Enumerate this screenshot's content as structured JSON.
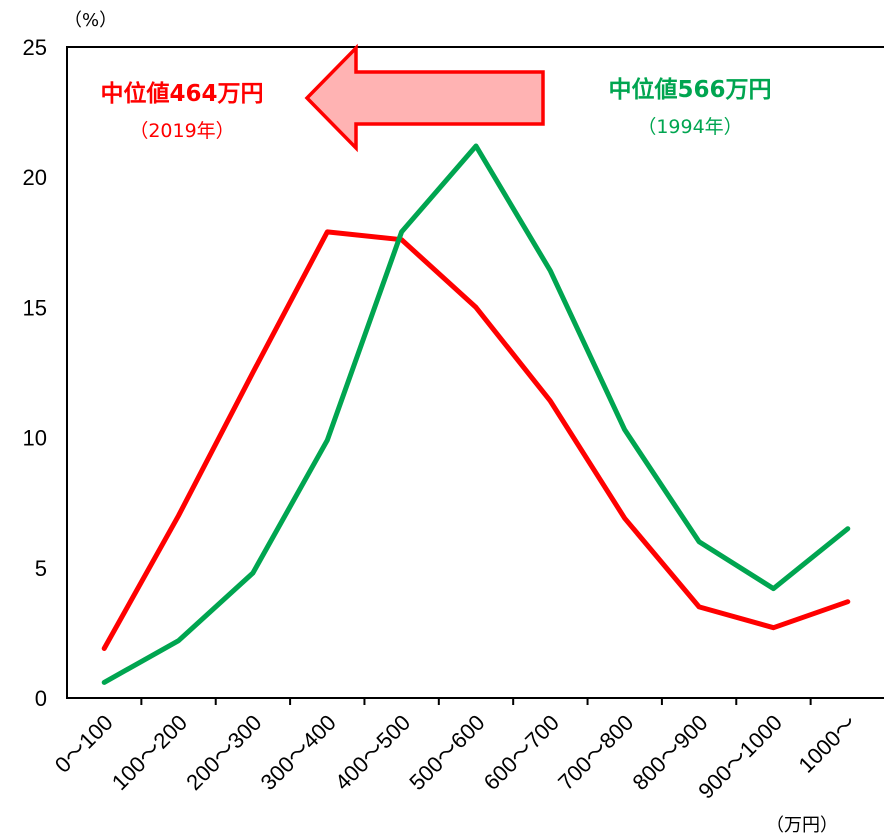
{
  "chart_data": {
    "type": "line",
    "y_unit": "（%）",
    "x_unit": "（万円）",
    "categories": [
      "0～100",
      "100～200",
      "200～300",
      "300～400",
      "400～500",
      "500～600",
      "600～700",
      "700～800",
      "800～900",
      "900～1000",
      "1000～"
    ],
    "yticks": [
      "0",
      "5",
      "10",
      "15",
      "20",
      "25"
    ],
    "ylim": [
      0,
      25
    ],
    "grid": false,
    "series": [
      {
        "color": "#ff0000",
        "values": [
          1.9,
          7.0,
          12.5,
          17.9,
          17.6,
          15.0,
          11.4,
          6.9,
          3.5,
          2.7,
          3.7
        ]
      },
      {
        "color": "#00a550",
        "values": [
          0.6,
          2.2,
          4.8,
          9.9,
          17.9,
          21.2,
          16.4,
          10.3,
          6.0,
          4.2,
          6.5
        ]
      }
    ],
    "annotations": {
      "left_main": "中位値464万円",
      "left_sub": "（2019年）",
      "left_color": "#ff0000",
      "right_main": "中位値566万円",
      "right_sub": "（1994年）",
      "right_color": "#00a550"
    },
    "arrow": {
      "fill": "#ffb3b3",
      "stroke": "#ff0000",
      "direction": "left"
    }
  }
}
